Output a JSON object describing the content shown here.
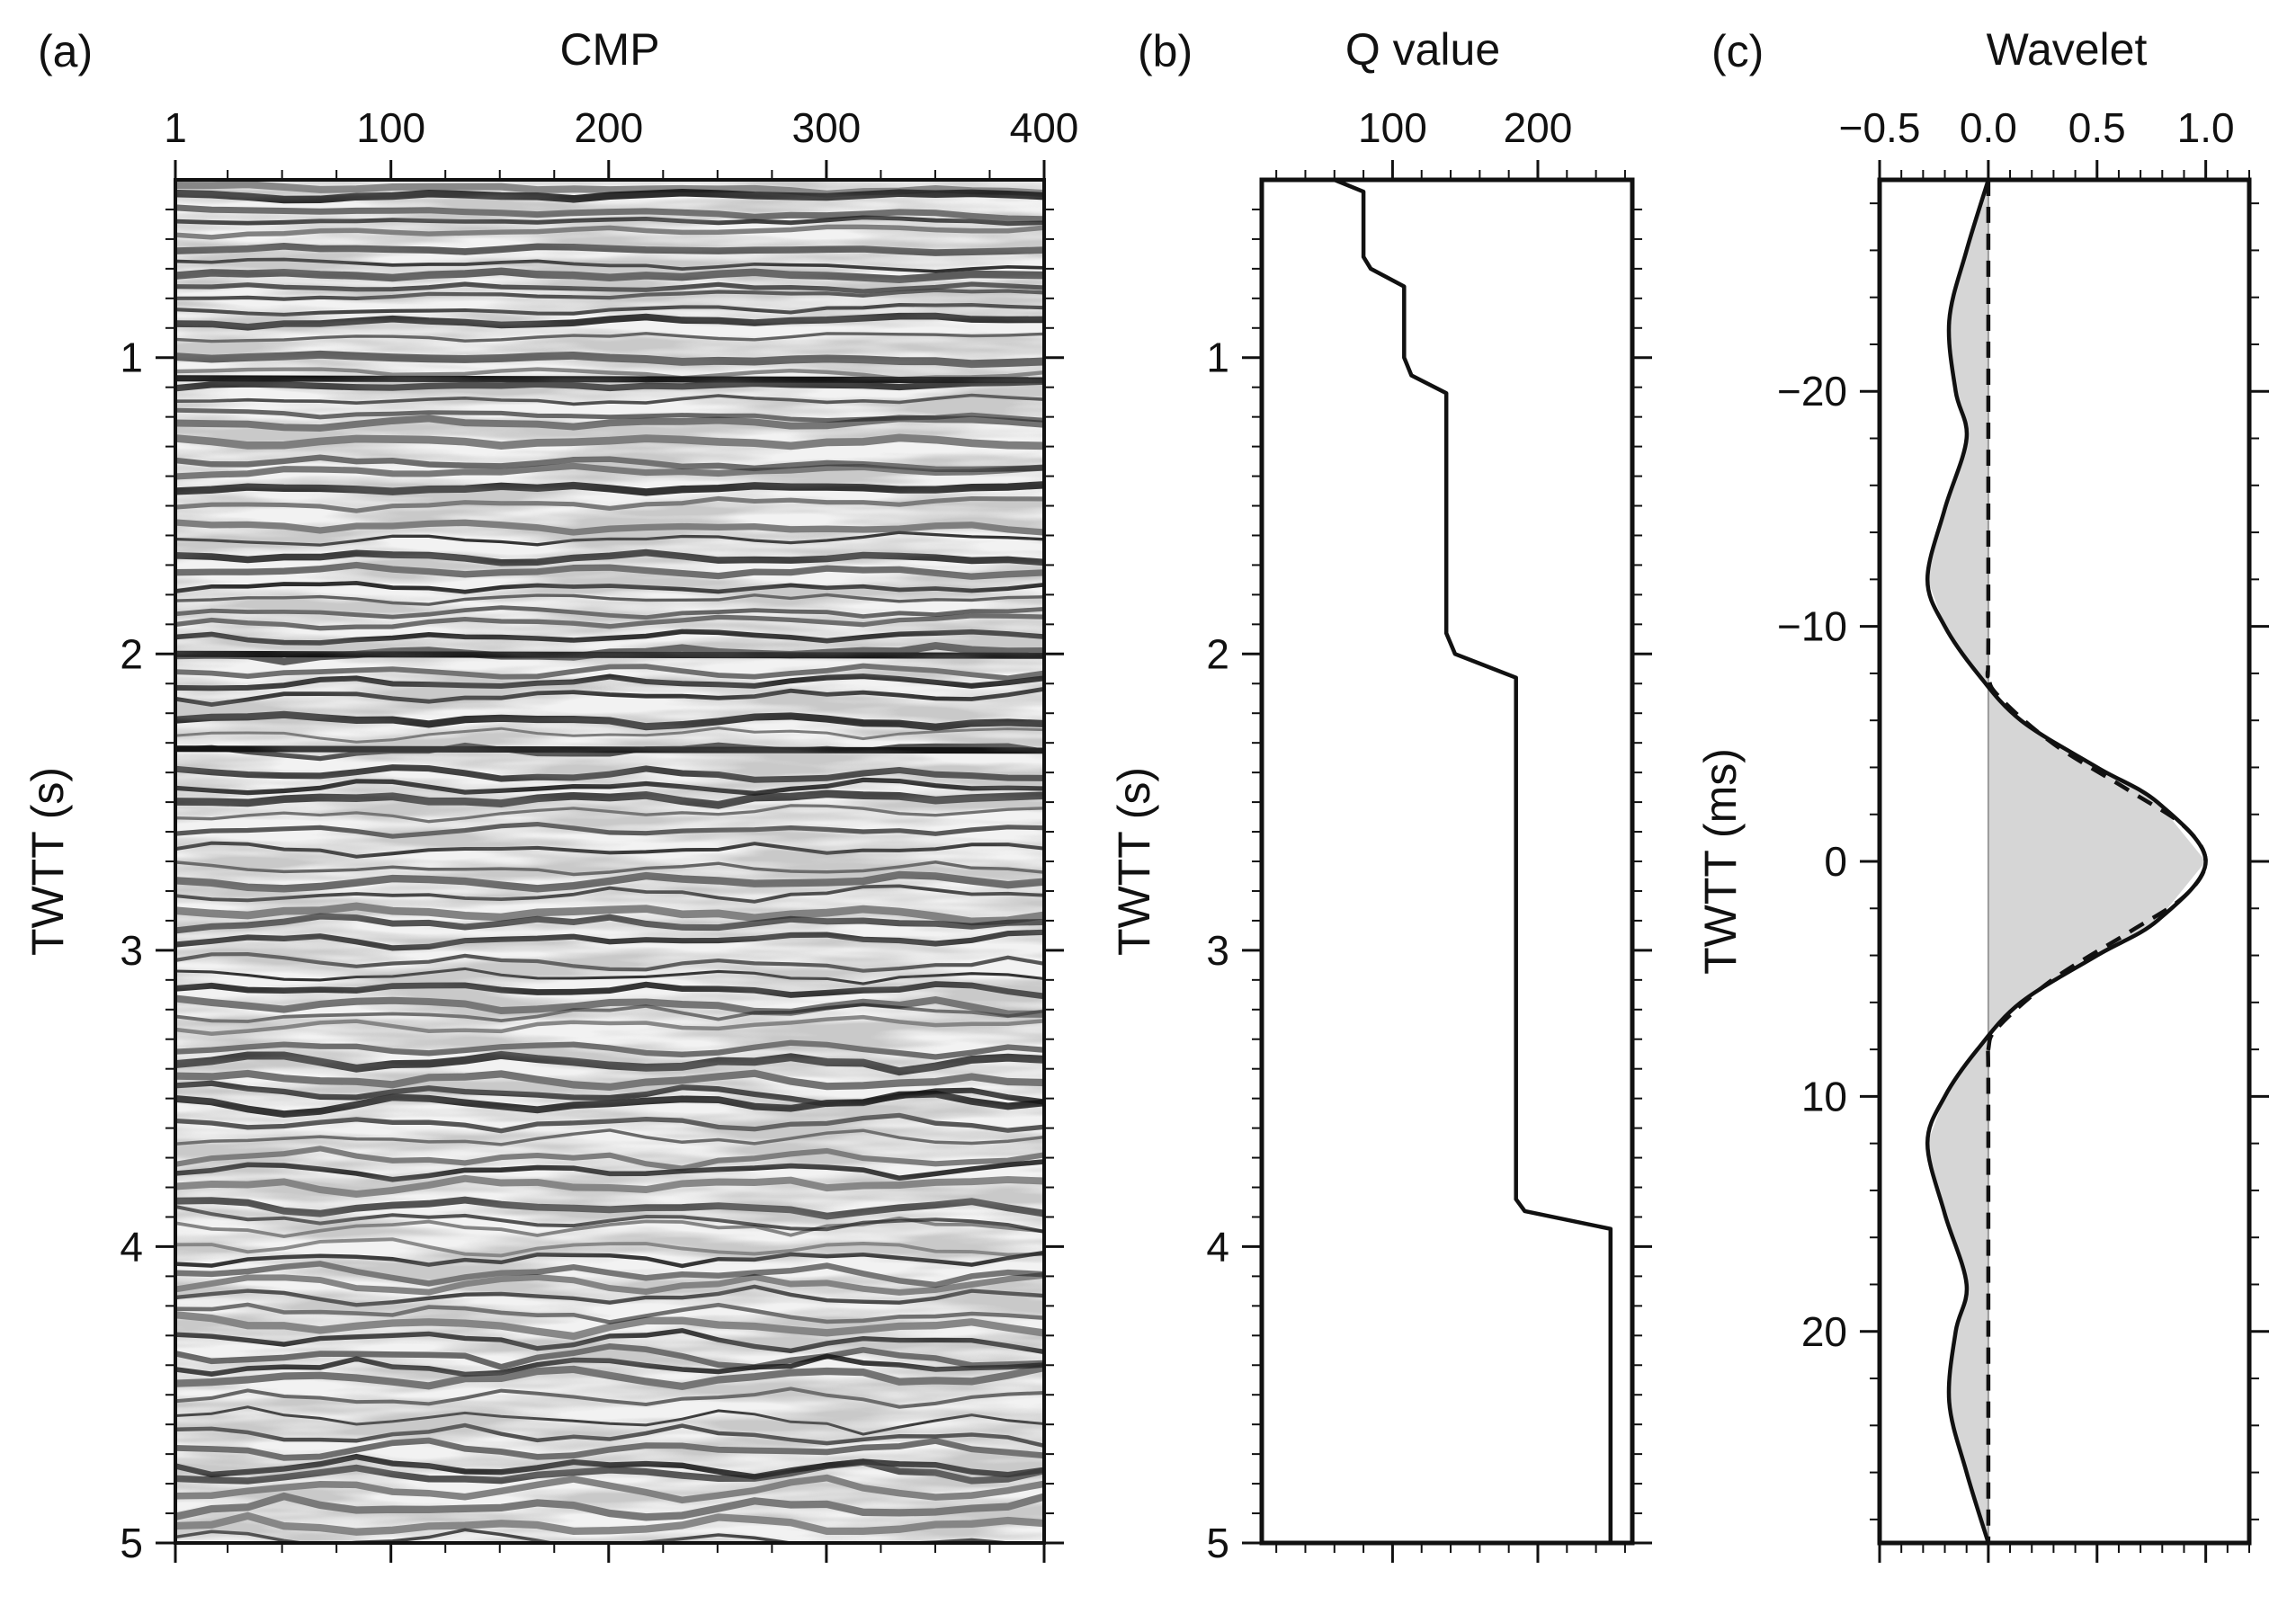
{
  "chart_data": [
    {
      "panel": "(a)",
      "type": "heatmap",
      "xlabel": "CMP",
      "ylabel": "TWTT (s)",
      "xlim": [
        1,
        400
      ],
      "ylim": [
        0.4,
        5
      ],
      "xticks": [
        1,
        100,
        200,
        300,
        400
      ],
      "yticks": [
        1,
        2,
        3,
        4,
        5
      ],
      "strong_reflectors_s": [
        1.07,
        2.0,
        2.32
      ],
      "colormap": "gray",
      "colors": {
        "dark": "#141414",
        "light": "#f2f2f2"
      }
    },
    {
      "panel": "(b)",
      "type": "line",
      "xlabel": "Q value",
      "ylabel": "TWTT (s)",
      "xlim": [
        10,
        265
      ],
      "ylim": [
        0.4,
        5
      ],
      "xticks": [
        100,
        200
      ],
      "yticks": [
        1,
        2,
        3,
        4,
        5
      ],
      "series": [
        {
          "points": [
            [
              60,
              0.4
            ],
            [
              80,
              0.44
            ],
            [
              80,
              0.66
            ],
            [
              85,
              0.7
            ],
            [
              108,
              0.76
            ],
            [
              108,
              1.0
            ],
            [
              113,
              1.06
            ],
            [
              137,
              1.12
            ],
            [
              137,
              1.93
            ],
            [
              143,
              2.0
            ],
            [
              185,
              2.08
            ],
            [
              185,
              3.84
            ],
            [
              191,
              3.88
            ],
            [
              250,
              3.94
            ],
            [
              250,
              5.0
            ]
          ]
        }
      ]
    },
    {
      "panel": "(c)",
      "type": "line",
      "xlabel": "Wavelet",
      "ylabel": "TWTT (ms)",
      "xlim": [
        -0.5,
        1.2
      ],
      "ylim": [
        -29,
        29
      ],
      "xticks": [
        -0.5,
        0.0,
        0.5,
        1.0
      ],
      "yticks": [
        -20,
        -10,
        0,
        10,
        20
      ],
      "series": [
        {
          "style": "solid",
          "fill": "#d6d6d6",
          "points": [
            [
              0.0,
              -29
            ],
            [
              -0.1,
              -26
            ],
            [
              -0.18,
              -23
            ],
            [
              -0.15,
              -20
            ],
            [
              -0.1,
              -18
            ],
            [
              -0.2,
              -15
            ],
            [
              -0.28,
              -12
            ],
            [
              -0.2,
              -10
            ],
            [
              -0.05,
              -8
            ],
            [
              0.15,
              -6
            ],
            [
              0.5,
              -4
            ],
            [
              0.78,
              -2.5
            ],
            [
              1.0,
              0
            ],
            [
              0.78,
              2.5
            ],
            [
              0.5,
              4
            ],
            [
              0.15,
              6
            ],
            [
              -0.05,
              8
            ],
            [
              -0.2,
              10
            ],
            [
              -0.28,
              12
            ],
            [
              -0.2,
              15
            ],
            [
              -0.1,
              18
            ],
            [
              -0.15,
              20
            ],
            [
              -0.18,
              23
            ],
            [
              -0.1,
              26
            ],
            [
              0.0,
              29
            ]
          ]
        },
        {
          "style": "dashed",
          "points": [
            [
              0.0,
              -29
            ],
            [
              0.0,
              -10
            ],
            [
              0.0,
              -8
            ],
            [
              0.05,
              -7
            ],
            [
              0.3,
              -5
            ],
            [
              0.65,
              -3
            ],
            [
              0.9,
              -1.5
            ],
            [
              1.0,
              0
            ],
            [
              0.9,
              1.5
            ],
            [
              0.65,
              3
            ],
            [
              0.3,
              5
            ],
            [
              0.05,
              7
            ],
            [
              0.0,
              8
            ],
            [
              0.0,
              10
            ],
            [
              0.0,
              29
            ]
          ]
        }
      ]
    }
  ]
}
